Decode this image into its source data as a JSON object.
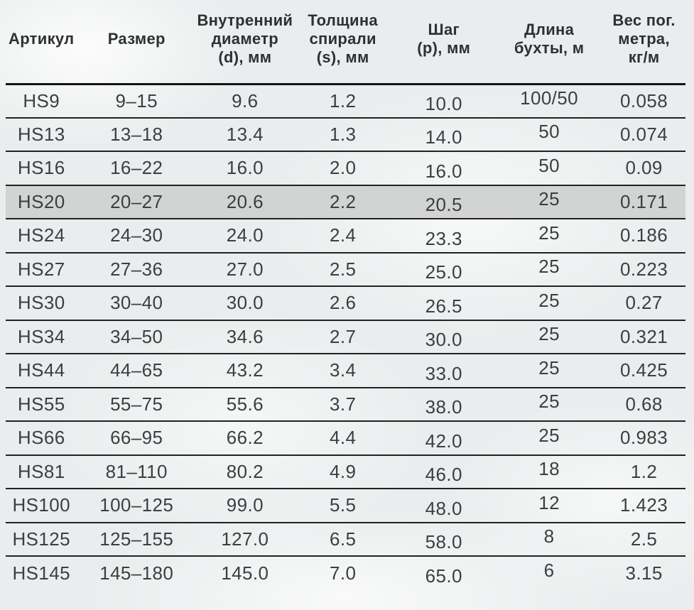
{
  "table": {
    "columns": [
      {
        "label": "Артикул"
      },
      {
        "label": "Размер"
      },
      {
        "label": "Внутренний\nдиаметр\n(d), мм"
      },
      {
        "label": "Толщина\nспирали\n(s), мм"
      },
      {
        "label": "Шаг\n(p), мм"
      },
      {
        "label": "Длина\nбухты, м"
      },
      {
        "label": "Вес пог.\nметра,\nкг/м"
      }
    ],
    "rows": [
      [
        "HS9",
        "9–15",
        "9.6",
        "1.2",
        "10.0",
        "100/50",
        "0.058"
      ],
      [
        "HS13",
        "13–18",
        "13.4",
        "1.3",
        "14.0",
        "50",
        "0.074"
      ],
      [
        "HS16",
        "16–22",
        "16.0",
        "2.0",
        "16.0",
        "50",
        "0.09"
      ],
      [
        "HS20",
        "20–27",
        "20.6",
        "2.2",
        "20.5",
        "25",
        "0.171"
      ],
      [
        "HS24",
        "24–30",
        "24.0",
        "2.4",
        "23.3",
        "25",
        "0.186"
      ],
      [
        "HS27",
        "27–36",
        "27.0",
        "2.5",
        "25.0",
        "25",
        "0.223"
      ],
      [
        "HS30",
        "30–40",
        "30.0",
        "2.6",
        "26.5",
        "25",
        "0.27"
      ],
      [
        "HS34",
        "34–50",
        "34.6",
        "2.7",
        "30.0",
        "25",
        "0.321"
      ],
      [
        "HS44",
        "44–65",
        "43.2",
        "3.4",
        "33.0",
        "25",
        "0.425"
      ],
      [
        "HS55",
        "55–75",
        "55.6",
        "3.7",
        "38.0",
        "25",
        "0.68"
      ],
      [
        "HS66",
        "66–95",
        "66.2",
        "4.4",
        "42.0",
        "25",
        "0.983"
      ],
      [
        "HS81",
        "81–110",
        "80.2",
        "4.9",
        "46.0",
        "18",
        "1.2"
      ],
      [
        "HS100",
        "100–125",
        "99.0",
        "5.5",
        "48.0",
        "12",
        "1.423"
      ],
      [
        "HS125",
        "125–155",
        "127.0",
        "6.5",
        "58.0",
        "8",
        "2.5"
      ],
      [
        "HS145",
        "145–180",
        "145.0",
        "7.0",
        "65.0",
        "6",
        "3.15"
      ]
    ],
    "highlighted_article": "HS20",
    "colors": {
      "highlight_row_background": "#d2d3d3",
      "row_separator": "#222222",
      "header_separator": "#141414",
      "body_text": "#3c3e3f",
      "header_text": "#2e3031",
      "page_background": "#eaeced"
    }
  }
}
